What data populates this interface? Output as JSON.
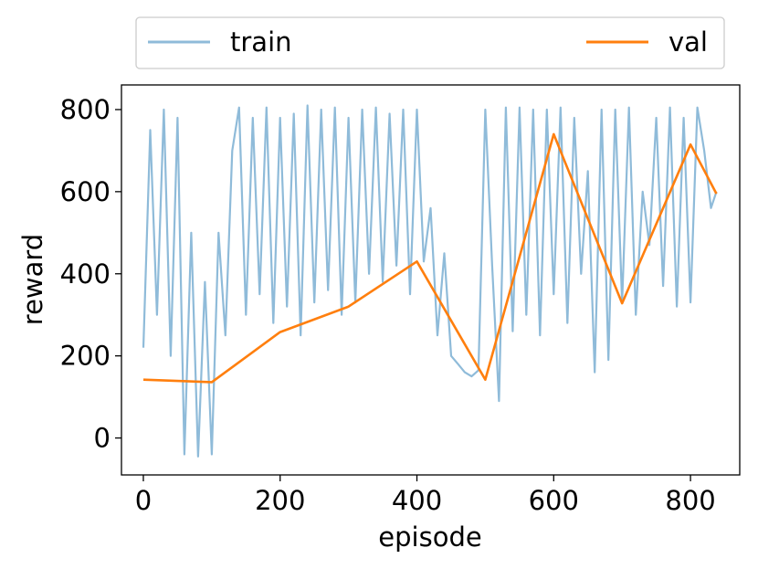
{
  "chart_data": {
    "type": "line",
    "xlabel": "episode",
    "ylabel": "reward",
    "xlim": [
      -32,
      872
    ],
    "ylim": [
      -90,
      860
    ],
    "xticks": [
      0,
      200,
      400,
      600,
      800
    ],
    "yticks": [
      0,
      200,
      400,
      600,
      800
    ],
    "grid": false,
    "legend_placement": "top, above plot, spanning width",
    "series": [
      {
        "name": "train",
        "color": "#8fbbd9",
        "x": [
          0,
          10,
          20,
          30,
          40,
          50,
          60,
          70,
          80,
          90,
          100,
          110,
          120,
          130,
          140,
          150,
          160,
          170,
          180,
          190,
          200,
          210,
          220,
          230,
          240,
          250,
          260,
          270,
          280,
          290,
          300,
          310,
          320,
          330,
          340,
          350,
          360,
          370,
          380,
          390,
          400,
          410,
          420,
          430,
          440,
          450,
          460,
          470,
          480,
          490,
          500,
          510,
          520,
          530,
          540,
          550,
          560,
          570,
          580,
          590,
          600,
          610,
          620,
          630,
          640,
          650,
          660,
          670,
          680,
          690,
          700,
          710,
          720,
          730,
          740,
          750,
          760,
          770,
          780,
          790,
          800,
          810,
          820,
          830,
          838
        ],
        "values": [
          220,
          750,
          300,
          800,
          200,
          780,
          -40,
          500,
          -45,
          380,
          -40,
          500,
          250,
          700,
          805,
          300,
          780,
          350,
          805,
          280,
          780,
          320,
          790,
          250,
          810,
          330,
          800,
          360,
          805,
          300,
          780,
          330,
          800,
          400,
          805,
          380,
          790,
          420,
          800,
          350,
          800,
          430,
          560,
          250,
          450,
          200,
          180,
          160,
          150,
          165,
          800,
          420,
          90,
          805,
          260,
          805,
          300,
          800,
          250,
          800,
          350,
          805,
          280,
          780,
          400,
          650,
          160,
          800,
          190,
          800,
          330,
          805,
          300,
          600,
          470,
          780,
          370,
          805,
          320,
          780,
          330,
          805,
          700,
          560,
          600
        ],
        "opacity": 1
      },
      {
        "name": "val",
        "color": "#ff7f0e",
        "x": [
          0,
          100,
          200,
          300,
          400,
          500,
          600,
          700,
          800,
          838
        ],
        "values": [
          142,
          136,
          258,
          320,
          430,
          142,
          740,
          328,
          715,
          595
        ]
      }
    ]
  }
}
